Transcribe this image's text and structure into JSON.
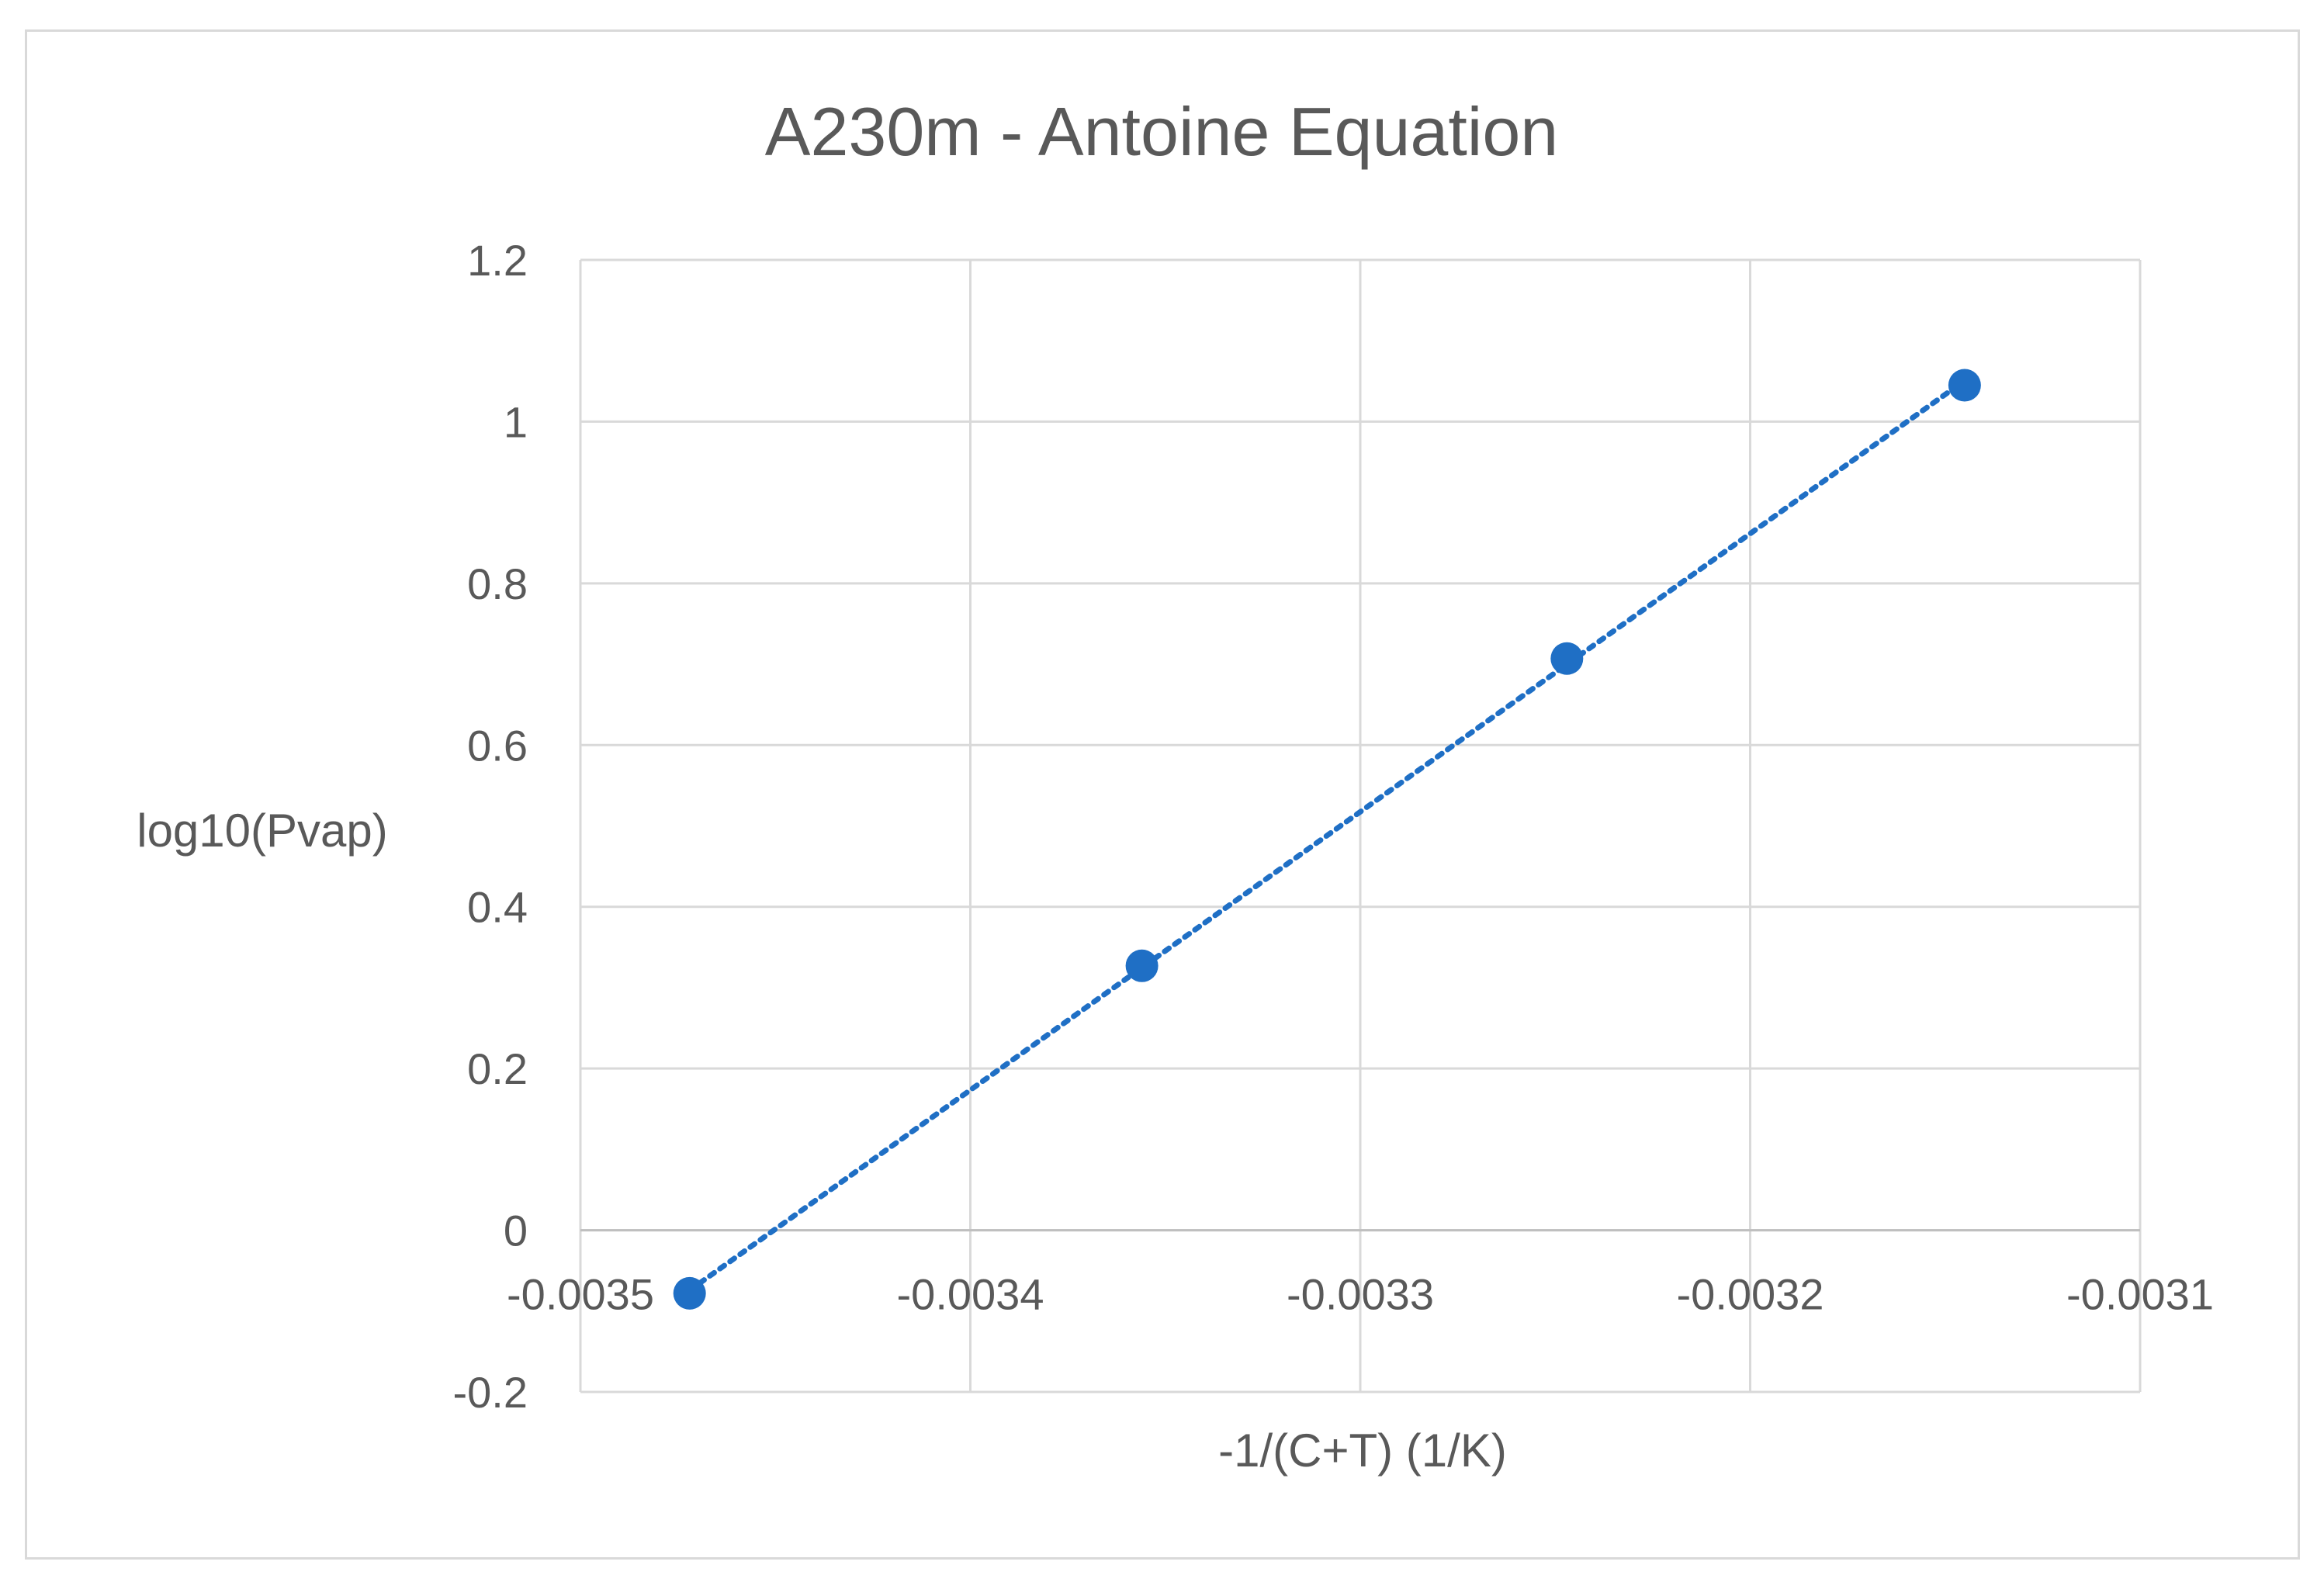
{
  "chart_data": {
    "type": "scatter",
    "title": "A230m - Antoine Equation",
    "xlabel": "-1/(C+T) (1/K)",
    "ylabel": "log10(Pvap)",
    "xlim": [
      -0.0035,
      -0.0031
    ],
    "ylim": [
      -0.2,
      1.2
    ],
    "x_ticks": [
      "-0.0035",
      "-0.0034",
      "-0.0033",
      "-0.0032",
      "-0.0031"
    ],
    "y_ticks": [
      "1.2",
      "1",
      "0.8",
      "0.6",
      "0.4",
      "0.2",
      "0",
      "-0.2"
    ],
    "grid": true,
    "legend": "none",
    "trendline": "linear, dotted",
    "marker_color": "#1f6fc5",
    "series": [
      {
        "x": [
          -0.003472,
          -0.003356,
          -0.003247,
          -0.003145
        ],
        "y": [
          -0.078,
          0.327,
          0.707,
          1.045
        ]
      }
    ]
  }
}
